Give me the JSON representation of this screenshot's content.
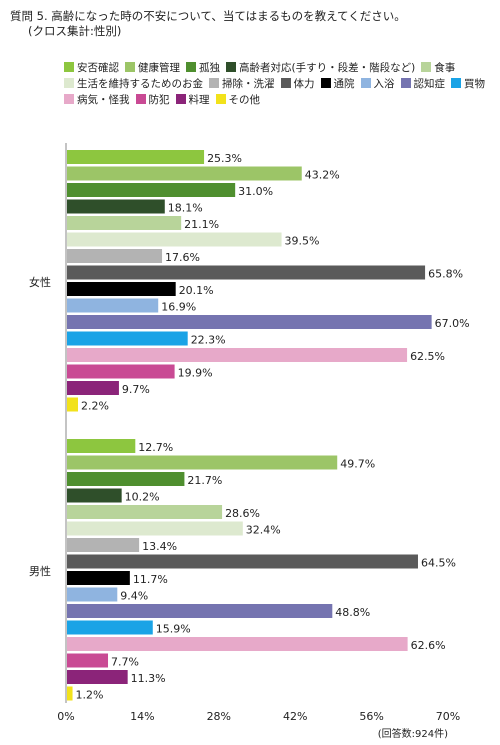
{
  "title": {
    "line1": "質問 5. 高齢になった時の不安について、当てはまるものを教えてください。",
    "line2": "(クロス集計:性別)"
  },
  "legend": [
    {
      "label": "安否確認",
      "color": "#8dc63f"
    },
    {
      "label": "健康管理",
      "color": "#9cc567"
    },
    {
      "label": "孤独",
      "color": "#4f8f2f"
    },
    {
      "label": "高齢者対応(手すり・段差・階段など)",
      "color": "#2f4f2a"
    },
    {
      "label": "食事",
      "color": "#b8d49a"
    },
    {
      "label": "生活を維持するためのお金",
      "color": "#dde9cf"
    },
    {
      "label": "掃除・洗濯",
      "color": "#b3b3b3"
    },
    {
      "label": "体力",
      "color": "#5a5a5a"
    },
    {
      "label": "通院",
      "color": "#000000"
    },
    {
      "label": "入浴",
      "color": "#8fb4e0"
    },
    {
      "label": "認知症",
      "color": "#7574b0"
    },
    {
      "label": "買物",
      "color": "#1aa3e6"
    },
    {
      "label": "病気・怪我",
      "color": "#e7a9c9"
    },
    {
      "label": "防犯",
      "color": "#c94a94"
    },
    {
      "label": "料理",
      "color": "#8b2479"
    },
    {
      "label": "その他",
      "color": "#f2e21b"
    }
  ],
  "chart_data": {
    "type": "bar",
    "orientation": "horizontal",
    "groups": [
      "女性",
      "男性"
    ],
    "series": [
      {
        "name": "安否確認",
        "values": [
          25.3,
          12.7
        ]
      },
      {
        "name": "健康管理",
        "values": [
          43.2,
          49.7
        ]
      },
      {
        "name": "孤独",
        "values": [
          31.0,
          21.7
        ]
      },
      {
        "name": "高齢者対応(手すり・段差・階段など)",
        "values": [
          18.1,
          10.2
        ]
      },
      {
        "name": "食事",
        "values": [
          21.1,
          28.6
        ]
      },
      {
        "name": "生活を維持するためのお金",
        "values": [
          39.5,
          32.4
        ]
      },
      {
        "name": "掃除・洗濯",
        "values": [
          17.6,
          13.4
        ]
      },
      {
        "name": "体力",
        "values": [
          65.8,
          64.5
        ]
      },
      {
        "name": "通院",
        "values": [
          20.1,
          11.7
        ]
      },
      {
        "name": "入浴",
        "values": [
          16.9,
          9.4
        ]
      },
      {
        "name": "認知症",
        "values": [
          67.0,
          48.8
        ]
      },
      {
        "name": "買物",
        "values": [
          22.3,
          15.9
        ]
      },
      {
        "name": "病気・怪我",
        "values": [
          62.5,
          62.6
        ]
      },
      {
        "name": "防犯",
        "values": [
          19.9,
          7.7
        ]
      },
      {
        "name": "料理",
        "values": [
          9.7,
          11.3
        ]
      },
      {
        "name": "その他",
        "values": [
          2.2,
          1.2
        ]
      }
    ],
    "value_labels": {
      "女性": [
        "25.3%",
        "43.2%",
        "31.0%",
        "18.1%",
        "21.1%",
        "39.5%",
        "17.6%",
        "65.8%",
        "20.1%",
        "16.9%",
        "67.0%",
        "22.3%",
        "62.5%",
        "19.9%",
        "9.7%",
        "2.2%"
      ],
      "男性": [
        "12.7%",
        "49.7%",
        "21.7%",
        "10.2%",
        "28.6%",
        "32.4%",
        "13.4%",
        "64.5%",
        "11.7%",
        "9.4%",
        "48.8%",
        "15.9%",
        "62.6%",
        "7.7%",
        "11.3%",
        "1.2%"
      ]
    },
    "xlim": [
      0,
      70
    ],
    "xticks": [
      "0%",
      "14%",
      "28%",
      "42%",
      "56%",
      "70%"
    ],
    "grid": false,
    "legend_position": "top"
  },
  "footer": "(回答数:924件)"
}
